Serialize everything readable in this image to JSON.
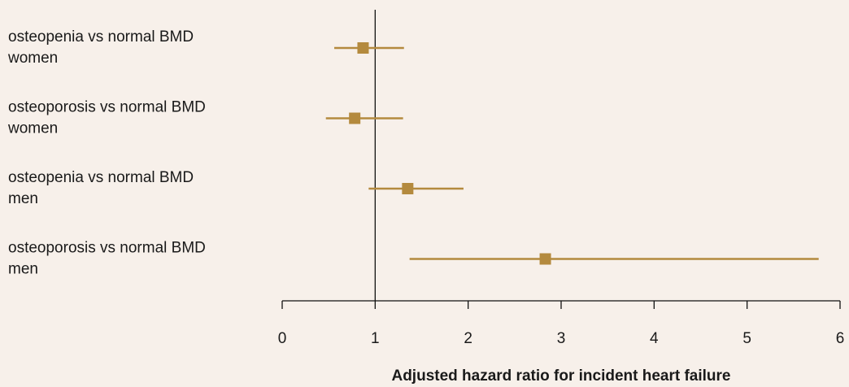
{
  "chart_data": {
    "type": "forest",
    "xlabel": "Adjusted hazard ratio for incident heart failure",
    "xlim": [
      0,
      6
    ],
    "xticks": [
      0,
      1,
      2,
      3,
      4,
      5,
      6
    ],
    "reference_line": 1,
    "grid": false,
    "color": "#b48a3e",
    "rows": [
      {
        "label_lines": [
          "osteopenia vs normal BMD",
          "women"
        ],
        "estimate": 0.87,
        "ci_low": 0.56,
        "ci_high": 1.31
      },
      {
        "label_lines": [
          "osteoporosis vs normal BMD",
          "women"
        ],
        "estimate": 0.78,
        "ci_low": 0.47,
        "ci_high": 1.3
      },
      {
        "label_lines": [
          "osteopenia vs normal BMD",
          "men"
        ],
        "estimate": 1.35,
        "ci_low": 0.93,
        "ci_high": 1.95
      },
      {
        "label_lines": [
          "osteoporosis vs normal BMD",
          "men"
        ],
        "estimate": 2.83,
        "ci_low": 1.37,
        "ci_high": 5.77
      }
    ]
  }
}
